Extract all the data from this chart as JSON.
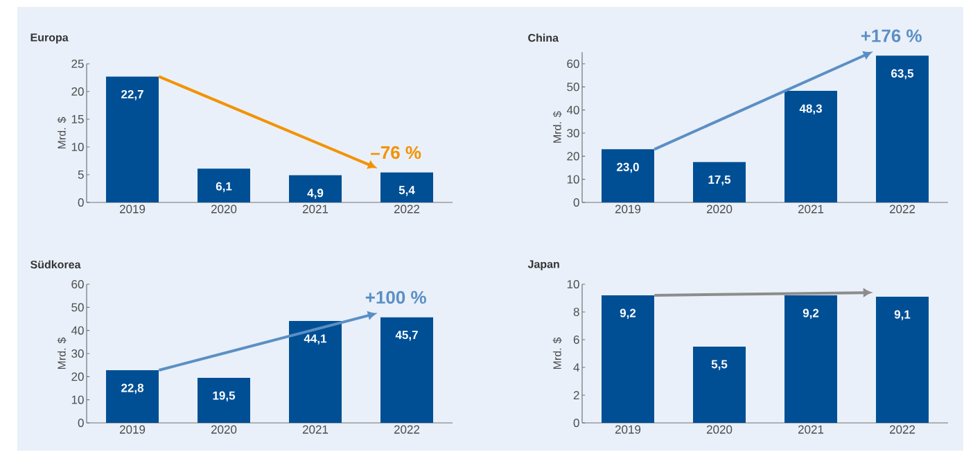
{
  "chart_data": [
    {
      "type": "bar",
      "title": "Europa",
      "ylabel": "Mrd. $",
      "categories": [
        "2019",
        "2020",
        "2021",
        "2022"
      ],
      "values": [
        22.7,
        6.1,
        4.9,
        5.4
      ],
      "value_labels": [
        "22,7",
        "6,1",
        "4,9",
        "5,4"
      ],
      "color": "#004f95",
      "ylim": [
        0,
        25
      ],
      "yticks": [
        0,
        5,
        10,
        15,
        20,
        25
      ],
      "annotations": [
        "–76 %"
      ]
    },
    {
      "type": "bar",
      "title": "China",
      "ylabel": "Mrd. $",
      "categories": [
        "2019",
        "2020",
        "2021",
        "2022"
      ],
      "values": [
        23.0,
        17.5,
        48.3,
        63.5
      ],
      "value_labels": [
        "23,0",
        "17,5",
        "48,3",
        "63,5"
      ],
      "color": "#004f95",
      "ylim": [
        0,
        65
      ],
      "yticks": [
        0,
        10,
        20,
        30,
        40,
        50,
        60
      ],
      "annotations": [
        "+176 %"
      ]
    },
    {
      "type": "bar",
      "title": "Südkorea",
      "ylabel": "Mrd. $",
      "categories": [
        "2019",
        "2020",
        "2021",
        "2022"
      ],
      "values": [
        22.8,
        19.5,
        44.1,
        45.7
      ],
      "value_labels": [
        "22,8",
        "19,5",
        "44,1",
        "45,7"
      ],
      "color": "#004f95",
      "ylim": [
        0,
        60
      ],
      "yticks": [
        0,
        10,
        20,
        30,
        40,
        50,
        60
      ],
      "annotations": [
        "+100 %"
      ]
    },
    {
      "type": "bar",
      "title": "Japan",
      "ylabel": "Mrd. $",
      "categories": [
        "2019",
        "2020",
        "2021",
        "2022"
      ],
      "values": [
        9.2,
        5.5,
        9.2,
        9.1
      ],
      "value_labels": [
        "9,2",
        "5,5",
        "9,2",
        "9,1"
      ],
      "color": "#004f95",
      "ylim": [
        0,
        10
      ],
      "yticks": [
        0,
        2,
        4,
        6,
        8,
        10
      ]
    }
  ]
}
